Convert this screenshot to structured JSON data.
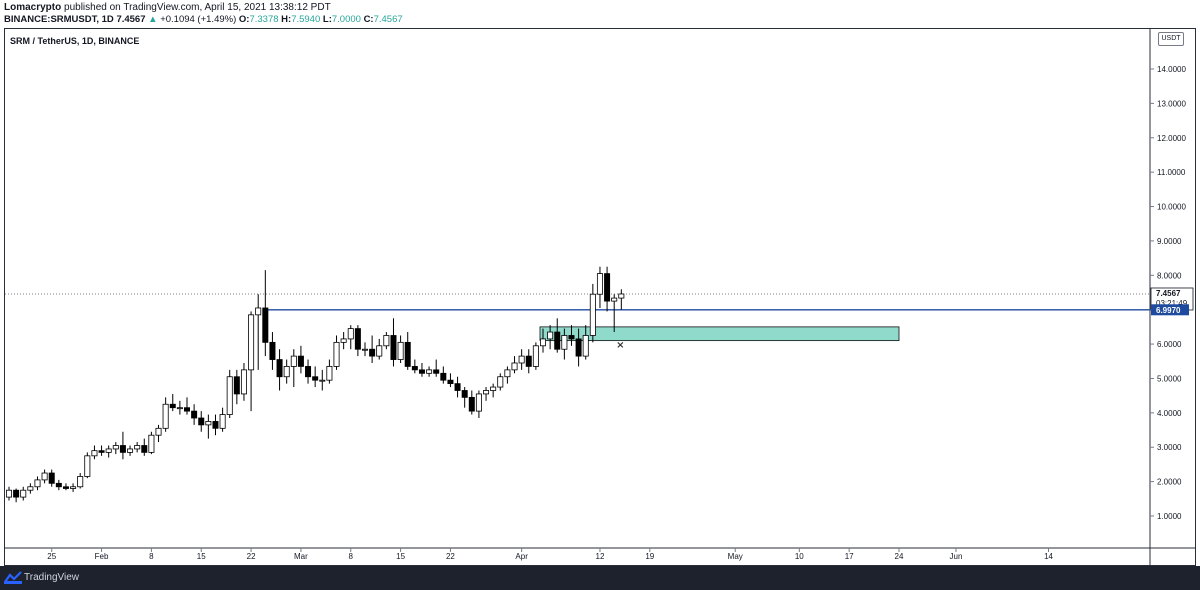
{
  "header": {
    "publisher": "Lomacrypto",
    "published_text": "published on TradingView.com, April 15, 2021 13:38:12 PDT",
    "symbol_full": "BINANCE:SRMUSDT, 1D",
    "last": "7.4567",
    "change": "+0.1094 (+1.49%)",
    "open_label": "O:",
    "open": "7.3378",
    "high_label": "H:",
    "high": "7.5940",
    "low_label": "L:",
    "low": "7.0000",
    "close_label": "C:",
    "close": "7.4567"
  },
  "chart_title": "SRM / TetherUS, 1D, BINANCE",
  "currency_label": "USDT",
  "footer": {
    "brand": "TradingView"
  },
  "colors": {
    "candle_up": "#ffffff",
    "candle_down": "#000000",
    "outline": "#000000",
    "support_line": "#1e4ba0",
    "zone_fill": "#7dd3c3",
    "zone_border": "#0d0d0d",
    "price_tag": "#131722",
    "support_tag": "#1e4ba0"
  },
  "chart_data": {
    "type": "candlestick",
    "y_axis": {
      "min": 0.5,
      "max": 15.0,
      "ticks": [
        1.0,
        2.0,
        3.0,
        4.0,
        5.0,
        6.0,
        7.0,
        8.0,
        9.0,
        10.0,
        11.0,
        12.0,
        13.0,
        14.0
      ],
      "tick_labels": [
        "1.0000",
        "2.0000",
        "3.0000",
        "4.0000",
        "5.0000",
        "6.0000",
        "7.0000",
        "8.0000",
        "9.0000",
        "10.0000",
        "11.0000",
        "12.0000",
        "13.0000",
        "14.0000"
      ]
    },
    "x_axis": {
      "start_date": "2021-01-19",
      "end_date": "2021-06-19",
      "tick_labels": [
        {
          "date": "2021-01-25",
          "label": "25"
        },
        {
          "date": "2021-02-01",
          "label": "Feb"
        },
        {
          "date": "2021-02-08",
          "label": "8"
        },
        {
          "date": "2021-02-15",
          "label": "15"
        },
        {
          "date": "2021-02-22",
          "label": "22"
        },
        {
          "date": "2021-03-01",
          "label": "Mar"
        },
        {
          "date": "2021-03-08",
          "label": "8"
        },
        {
          "date": "2021-03-15",
          "label": "15"
        },
        {
          "date": "2021-03-22",
          "label": "22"
        },
        {
          "date": "2021-04-01",
          "label": "Apr"
        },
        {
          "date": "2021-04-12",
          "label": "12"
        },
        {
          "date": "2021-04-19",
          "label": "19"
        },
        {
          "date": "2021-05-01",
          "label": "May"
        },
        {
          "date": "2021-05-10",
          "label": "10"
        },
        {
          "date": "2021-05-17",
          "label": "17"
        },
        {
          "date": "2021-05-24",
          "label": "24"
        },
        {
          "date": "2021-06-01",
          "label": "Jun"
        },
        {
          "date": "2021-06-14",
          "label": "14"
        }
      ]
    },
    "candles": [
      {
        "date": "2021-01-19",
        "o": 1.55,
        "h": 1.85,
        "l": 1.45,
        "c": 1.75
      },
      {
        "date": "2021-01-20",
        "o": 1.75,
        "h": 1.8,
        "l": 1.4,
        "c": 1.55
      },
      {
        "date": "2021-01-21",
        "o": 1.55,
        "h": 1.85,
        "l": 1.45,
        "c": 1.75
      },
      {
        "date": "2021-01-22",
        "o": 1.75,
        "h": 1.95,
        "l": 1.65,
        "c": 1.85
      },
      {
        "date": "2021-01-23",
        "o": 1.85,
        "h": 2.15,
        "l": 1.75,
        "c": 2.05
      },
      {
        "date": "2021-01-24",
        "o": 2.05,
        "h": 2.35,
        "l": 1.95,
        "c": 2.25
      },
      {
        "date": "2021-01-25",
        "o": 2.25,
        "h": 2.35,
        "l": 1.85,
        "c": 1.95
      },
      {
        "date": "2021-01-26",
        "o": 1.95,
        "h": 2.05,
        "l": 1.75,
        "c": 1.85
      },
      {
        "date": "2021-01-27",
        "o": 1.85,
        "h": 1.95,
        "l": 1.75,
        "c": 1.8
      },
      {
        "date": "2021-01-28",
        "o": 1.8,
        "h": 1.95,
        "l": 1.7,
        "c": 1.85
      },
      {
        "date": "2021-01-29",
        "o": 1.85,
        "h": 2.25,
        "l": 1.8,
        "c": 2.15
      },
      {
        "date": "2021-01-30",
        "o": 2.15,
        "h": 2.85,
        "l": 2.1,
        "c": 2.75
      },
      {
        "date": "2021-01-31",
        "o": 2.75,
        "h": 3.05,
        "l": 2.65,
        "c": 2.9
      },
      {
        "date": "2021-02-01",
        "o": 2.9,
        "h": 3.05,
        "l": 2.75,
        "c": 2.85
      },
      {
        "date": "2021-02-02",
        "o": 2.85,
        "h": 3.05,
        "l": 2.7,
        "c": 2.95
      },
      {
        "date": "2021-02-03",
        "o": 2.95,
        "h": 3.15,
        "l": 2.8,
        "c": 3.05
      },
      {
        "date": "2021-02-04",
        "o": 3.05,
        "h": 3.45,
        "l": 2.65,
        "c": 2.85
      },
      {
        "date": "2021-02-05",
        "o": 2.85,
        "h": 3.05,
        "l": 2.75,
        "c": 2.95
      },
      {
        "date": "2021-02-06",
        "o": 2.95,
        "h": 3.15,
        "l": 2.85,
        "c": 3.05
      },
      {
        "date": "2021-02-07",
        "o": 3.05,
        "h": 3.25,
        "l": 2.75,
        "c": 2.85
      },
      {
        "date": "2021-02-08",
        "o": 2.85,
        "h": 3.45,
        "l": 2.8,
        "c": 3.35
      },
      {
        "date": "2021-02-09",
        "o": 3.35,
        "h": 3.65,
        "l": 3.15,
        "c": 3.55
      },
      {
        "date": "2021-02-10",
        "o": 3.55,
        "h": 4.45,
        "l": 3.45,
        "c": 4.25
      },
      {
        "date": "2021-02-11",
        "o": 4.25,
        "h": 4.55,
        "l": 4.05,
        "c": 4.15
      },
      {
        "date": "2021-02-12",
        "o": 4.15,
        "h": 4.35,
        "l": 3.95,
        "c": 4.15
      },
      {
        "date": "2021-02-13",
        "o": 4.15,
        "h": 4.45,
        "l": 3.95,
        "c": 4.05
      },
      {
        "date": "2021-02-14",
        "o": 4.05,
        "h": 4.25,
        "l": 3.65,
        "c": 3.85
      },
      {
        "date": "2021-02-15",
        "o": 3.85,
        "h": 4.05,
        "l": 3.45,
        "c": 3.65
      },
      {
        "date": "2021-02-16",
        "o": 3.65,
        "h": 3.95,
        "l": 3.25,
        "c": 3.75
      },
      {
        "date": "2021-02-17",
        "o": 3.75,
        "h": 3.95,
        "l": 3.35,
        "c": 3.55
      },
      {
        "date": "2021-02-18",
        "o": 3.55,
        "h": 4.15,
        "l": 3.45,
        "c": 3.95
      },
      {
        "date": "2021-02-19",
        "o": 3.95,
        "h": 5.25,
        "l": 3.85,
        "c": 5.05
      },
      {
        "date": "2021-02-20",
        "o": 5.05,
        "h": 5.25,
        "l": 4.25,
        "c": 4.55
      },
      {
        "date": "2021-02-21",
        "o": 4.55,
        "h": 5.45,
        "l": 4.35,
        "c": 5.25
      },
      {
        "date": "2021-02-22",
        "o": 5.25,
        "h": 6.95,
        "l": 4.05,
        "c": 6.85
      },
      {
        "date": "2021-02-23",
        "o": 6.85,
        "h": 7.45,
        "l": 5.25,
        "c": 7.05
      },
      {
        "date": "2021-02-24",
        "o": 7.05,
        "h": 8.15,
        "l": 5.65,
        "c": 6.05
      },
      {
        "date": "2021-02-25",
        "o": 6.05,
        "h": 6.35,
        "l": 5.25,
        "c": 5.55
      },
      {
        "date": "2021-02-26",
        "o": 5.55,
        "h": 5.85,
        "l": 4.65,
        "c": 5.05
      },
      {
        "date": "2021-02-27",
        "o": 5.05,
        "h": 5.55,
        "l": 4.85,
        "c": 5.35
      },
      {
        "date": "2021-02-28",
        "o": 5.35,
        "h": 5.85,
        "l": 4.75,
        "c": 5.65
      },
      {
        "date": "2021-03-01",
        "o": 5.65,
        "h": 5.95,
        "l": 5.15,
        "c": 5.35
      },
      {
        "date": "2021-03-02",
        "o": 5.35,
        "h": 5.55,
        "l": 4.85,
        "c": 5.05
      },
      {
        "date": "2021-03-03",
        "o": 5.05,
        "h": 5.35,
        "l": 4.75,
        "c": 4.95
      },
      {
        "date": "2021-03-04",
        "o": 4.95,
        "h": 5.25,
        "l": 4.65,
        "c": 4.95
      },
      {
        "date": "2021-03-05",
        "o": 4.95,
        "h": 5.55,
        "l": 4.85,
        "c": 5.35
      },
      {
        "date": "2021-03-06",
        "o": 5.35,
        "h": 6.25,
        "l": 5.25,
        "c": 6.05
      },
      {
        "date": "2021-03-07",
        "o": 6.05,
        "h": 6.35,
        "l": 5.85,
        "c": 6.15
      },
      {
        "date": "2021-03-08",
        "o": 6.15,
        "h": 6.55,
        "l": 5.85,
        "c": 6.45
      },
      {
        "date": "2021-03-09",
        "o": 6.45,
        "h": 6.55,
        "l": 5.65,
        "c": 5.85
      },
      {
        "date": "2021-03-10",
        "o": 5.85,
        "h": 6.05,
        "l": 5.65,
        "c": 5.85
      },
      {
        "date": "2021-03-11",
        "o": 5.85,
        "h": 6.25,
        "l": 5.45,
        "c": 5.65
      },
      {
        "date": "2021-03-12",
        "o": 5.65,
        "h": 6.15,
        "l": 5.55,
        "c": 5.95
      },
      {
        "date": "2021-03-13",
        "o": 5.95,
        "h": 6.35,
        "l": 5.85,
        "c": 6.25
      },
      {
        "date": "2021-03-14",
        "o": 6.25,
        "h": 6.75,
        "l": 5.35,
        "c": 5.55
      },
      {
        "date": "2021-03-15",
        "o": 5.55,
        "h": 6.25,
        "l": 5.45,
        "c": 6.05
      },
      {
        "date": "2021-03-16",
        "o": 6.05,
        "h": 6.35,
        "l": 5.25,
        "c": 5.35
      },
      {
        "date": "2021-03-17",
        "o": 5.35,
        "h": 5.55,
        "l": 5.15,
        "c": 5.25
      },
      {
        "date": "2021-03-18",
        "o": 5.25,
        "h": 5.45,
        "l": 5.05,
        "c": 5.15
      },
      {
        "date": "2021-03-19",
        "o": 5.15,
        "h": 5.35,
        "l": 5.05,
        "c": 5.25
      },
      {
        "date": "2021-03-20",
        "o": 5.25,
        "h": 5.55,
        "l": 5.05,
        "c": 5.15
      },
      {
        "date": "2021-03-21",
        "o": 5.15,
        "h": 5.35,
        "l": 4.85,
        "c": 4.95
      },
      {
        "date": "2021-03-22",
        "o": 4.95,
        "h": 5.15,
        "l": 4.75,
        "c": 4.85
      },
      {
        "date": "2021-03-23",
        "o": 4.85,
        "h": 5.05,
        "l": 4.45,
        "c": 4.65
      },
      {
        "date": "2021-03-24",
        "o": 4.65,
        "h": 4.75,
        "l": 4.15,
        "c": 4.45
      },
      {
        "date": "2021-03-25",
        "o": 4.45,
        "h": 4.65,
        "l": 3.95,
        "c": 4.05
      },
      {
        "date": "2021-03-26",
        "o": 4.05,
        "h": 4.65,
        "l": 3.85,
        "c": 4.55
      },
      {
        "date": "2021-03-27",
        "o": 4.55,
        "h": 4.75,
        "l": 4.35,
        "c": 4.65
      },
      {
        "date": "2021-03-28",
        "o": 4.65,
        "h": 4.85,
        "l": 4.45,
        "c": 4.75
      },
      {
        "date": "2021-03-29",
        "o": 4.75,
        "h": 5.15,
        "l": 4.65,
        "c": 5.05
      },
      {
        "date": "2021-03-30",
        "o": 5.05,
        "h": 5.35,
        "l": 4.85,
        "c": 5.25
      },
      {
        "date": "2021-03-31",
        "o": 5.25,
        "h": 5.65,
        "l": 5.15,
        "c": 5.45
      },
      {
        "date": "2021-04-01",
        "o": 5.45,
        "h": 5.85,
        "l": 5.25,
        "c": 5.65
      },
      {
        "date": "2021-04-02",
        "o": 5.65,
        "h": 5.85,
        "l": 5.15,
        "c": 5.35
      },
      {
        "date": "2021-04-03",
        "o": 5.35,
        "h": 6.05,
        "l": 5.25,
        "c": 5.95
      },
      {
        "date": "2021-04-04",
        "o": 5.95,
        "h": 6.45,
        "l": 5.75,
        "c": 6.15
      },
      {
        "date": "2021-04-05",
        "o": 6.15,
        "h": 6.55,
        "l": 5.85,
        "c": 6.35
      },
      {
        "date": "2021-04-06",
        "o": 6.35,
        "h": 6.75,
        "l": 5.75,
        "c": 5.85
      },
      {
        "date": "2021-04-07",
        "o": 5.85,
        "h": 6.45,
        "l": 5.55,
        "c": 6.25
      },
      {
        "date": "2021-04-08",
        "o": 6.25,
        "h": 6.55,
        "l": 5.95,
        "c": 6.15
      },
      {
        "date": "2021-04-09",
        "o": 6.15,
        "h": 6.45,
        "l": 5.35,
        "c": 5.65
      },
      {
        "date": "2021-04-10",
        "o": 5.65,
        "h": 6.55,
        "l": 5.55,
        "c": 6.25
      },
      {
        "date": "2021-04-11",
        "o": 6.25,
        "h": 7.75,
        "l": 6.05,
        "c": 7.45
      },
      {
        "date": "2021-04-12",
        "o": 7.45,
        "h": 8.25,
        "l": 7.05,
        "c": 8.05
      },
      {
        "date": "2021-04-13",
        "o": 8.05,
        "h": 8.25,
        "l": 6.95,
        "c": 7.25
      },
      {
        "date": "2021-04-14",
        "o": 7.25,
        "h": 7.45,
        "l": 6.35,
        "c": 7.3378
      },
      {
        "date": "2021-04-15",
        "o": 7.3378,
        "h": 7.594,
        "l": 7.0,
        "c": 7.4567
      }
    ],
    "support_line": {
      "value": 6.997,
      "label": "6.9970"
    },
    "current_price": {
      "value": 7.4567,
      "label": "7.4567",
      "countdown": "03:21:49"
    },
    "zone": {
      "start_date": "2021-04-04",
      "end_date": "2021-05-24",
      "top": 6.5,
      "bottom": 6.1
    },
    "zone_marker": {
      "date": "2021-04-15",
      "value": 5.98,
      "symbol": "×"
    }
  }
}
